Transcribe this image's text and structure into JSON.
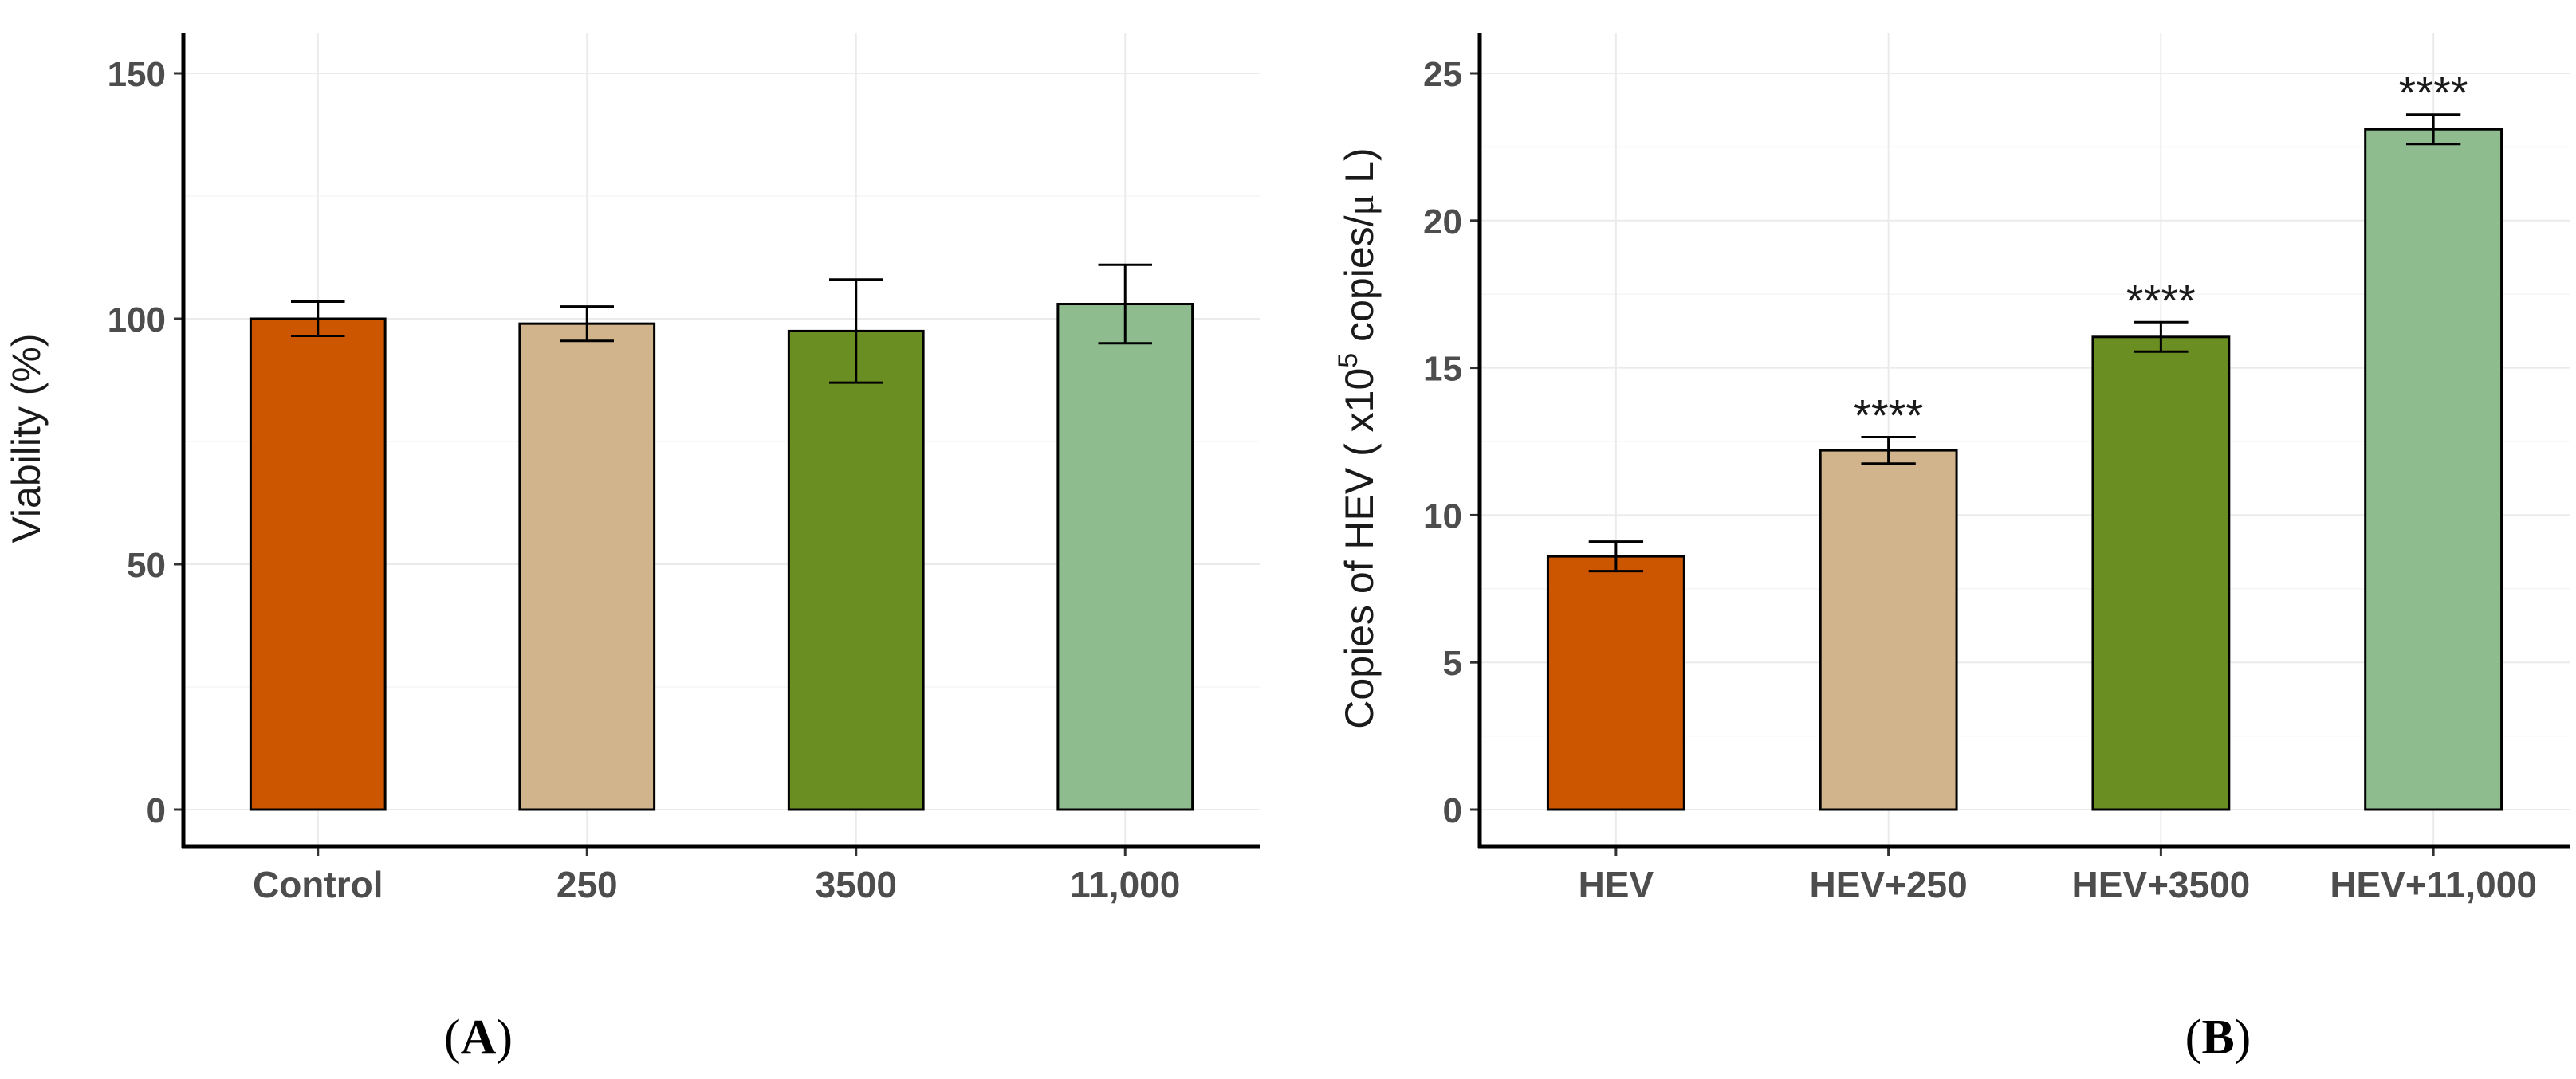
{
  "chart_data": [
    {
      "panel": "A",
      "panel_label": "A",
      "type": "bar",
      "title": "",
      "xlabel": "",
      "ylabel": "Viability (%)",
      "categories": [
        "Control",
        "250",
        "3500",
        "11,000"
      ],
      "values": [
        100,
        99,
        97.5,
        103
      ],
      "errors": [
        3.5,
        3.5,
        10.5,
        8
      ],
      "colors": [
        "#CC5500",
        "#D2B48C",
        "#6B8E23",
        "#8FBC8F"
      ],
      "ylim": [
        0,
        150
      ],
      "yticks": [
        0,
        50,
        100,
        150
      ],
      "annotations": [
        "",
        "",
        "",
        ""
      ],
      "grid": true
    },
    {
      "panel": "B",
      "panel_label": "B",
      "type": "bar",
      "title": "",
      "xlabel": "",
      "ylabel_parts": {
        "prefix": "Copies of HEV ( x10",
        "superscript": "5",
        "suffix": " copies/",
        "mu": "μ",
        "unit": " L)"
      },
      "categories": [
        "HEV",
        "HEV+250",
        "HEV+3500",
        "HEV+11,000"
      ],
      "values": [
        8.6,
        12.2,
        16.05,
        23.1
      ],
      "errors": [
        0.5,
        0.45,
        0.5,
        0.5
      ],
      "colors": [
        "#CC5500",
        "#D2B48C",
        "#6B8E23",
        "#8FBC8F"
      ],
      "ylim": [
        0,
        25
      ],
      "yticks": [
        0,
        5,
        10,
        15,
        20,
        25
      ],
      "annotations": [
        "",
        "****",
        "****",
        "****"
      ],
      "grid": true
    }
  ]
}
